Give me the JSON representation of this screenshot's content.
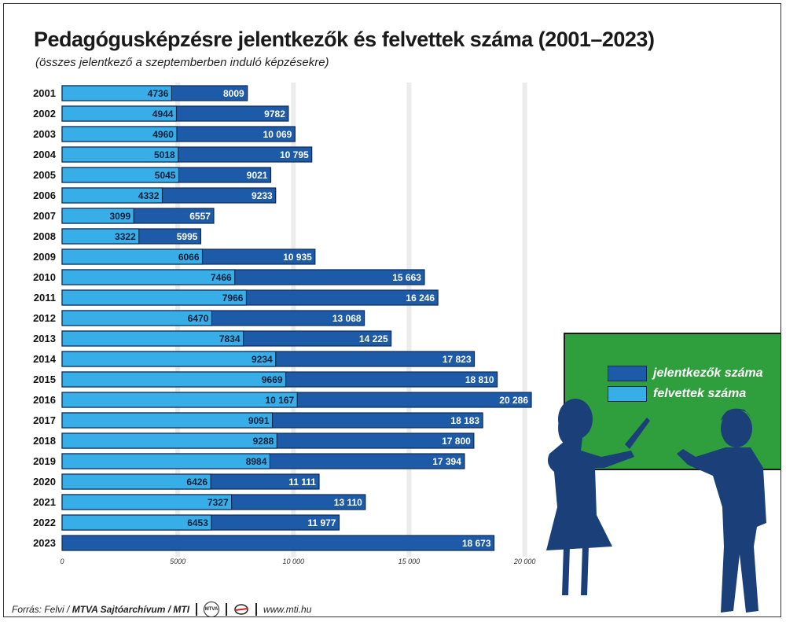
{
  "title": "Pedagógusképzésre jelentkezők és felvettek száma (2001–2023)",
  "subtitle": "(összes jelentkező a szeptemberben induló képzésekre)",
  "legend": {
    "applicants_label": "jelentkezők száma",
    "admitted_label": "felvettek száma"
  },
  "colors": {
    "applicants": "#1d5aa8",
    "admitted": "#38aee8",
    "board": "#2f9e3c",
    "silhouette": "#1b3f78"
  },
  "footer": {
    "source_label": "Forrás: Felvi / ",
    "source_bold": "MTVA Sajtóarchívum / MTI",
    "logo1_text": "MTVA",
    "url": "www.mti.hu"
  },
  "chart_data": {
    "type": "bar",
    "orientation": "horizontal",
    "categories": [
      "2001",
      "2002",
      "2003",
      "2004",
      "2005",
      "2006",
      "2007",
      "2008",
      "2009",
      "2010",
      "2011",
      "2012",
      "2013",
      "2014",
      "2015",
      "2016",
      "2017",
      "2018",
      "2019",
      "2020",
      "2021",
      "2022",
      "2023"
    ],
    "series": [
      {
        "name": "jelentkezők száma",
        "values": [
          8009,
          9782,
          10069,
          10795,
          9021,
          9233,
          6557,
          5995,
          10935,
          15663,
          16246,
          13068,
          14225,
          17823,
          18810,
          20286,
          18183,
          17800,
          17394,
          11111,
          13110,
          11977,
          18673
        ]
      },
      {
        "name": "felvettek száma",
        "values": [
          4736,
          4944,
          4960,
          5018,
          5045,
          4332,
          3099,
          3322,
          6066,
          7466,
          7966,
          6470,
          7834,
          9234,
          9669,
          10167,
          9091,
          9288,
          8984,
          6426,
          7327,
          6453,
          null
        ]
      }
    ],
    "value_labels_applicants": [
      "8009",
      "9782",
      "10 069",
      "10 795",
      "9021",
      "9233",
      "6557",
      "5995",
      "10 935",
      "15 663",
      "16 246",
      "13 068",
      "14 225",
      "17 823",
      "18 810",
      "20 286",
      "18 183",
      "17 800",
      "17 394",
      "11 111",
      "13 110",
      "11 977",
      "18 673"
    ],
    "value_labels_admitted": [
      "4736",
      "4944",
      "4960",
      "5018",
      "5045",
      "4332",
      "3099",
      "3322",
      "6066",
      "7466",
      "7966",
      "6470",
      "7834",
      "9234",
      "9669",
      "10 167",
      "9091",
      "9288",
      "8984",
      "6426",
      "7327",
      "6453",
      ""
    ],
    "x_ticks": [
      0,
      5000,
      10000,
      15000,
      20000
    ],
    "x_tick_labels": [
      "0",
      "5000",
      "10 000",
      "15 000",
      "20 000"
    ],
    "xlim": [
      0,
      20286
    ],
    "grid": true,
    "legend_position": "right, on chalkboard"
  }
}
